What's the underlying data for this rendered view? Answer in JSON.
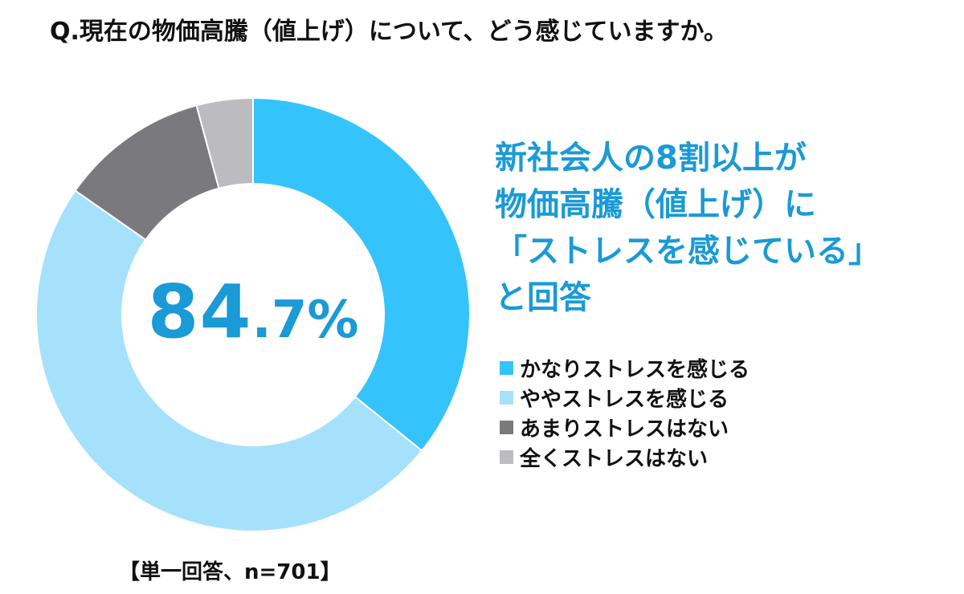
{
  "question": "Q.現在の物価高騰（値上げ）について、どう感じていますか。",
  "headline": {
    "lines": [
      "新社会人の8割以上が",
      "物価高騰（値上げ）に",
      "「ストレスを感じている」",
      "と回答"
    ]
  },
  "center": {
    "number": "84",
    "decimal": ".7%"
  },
  "note": "【単一回答、n=701】",
  "colors": {
    "accent_text": "#1a9ad6"
  },
  "chart_data": {
    "type": "pie",
    "donut": true,
    "categories": [
      "かなりストレスを感じる",
      "ややストレスを感じる",
      "あまりストレスはない",
      "全くストレスはない"
    ],
    "values": [
      35.8,
      48.9,
      11.1,
      4.2
    ],
    "colors": [
      "#35c3fb",
      "#a6e1fc",
      "#7a797e",
      "#bcbbc0"
    ],
    "legend_position": "right"
  }
}
